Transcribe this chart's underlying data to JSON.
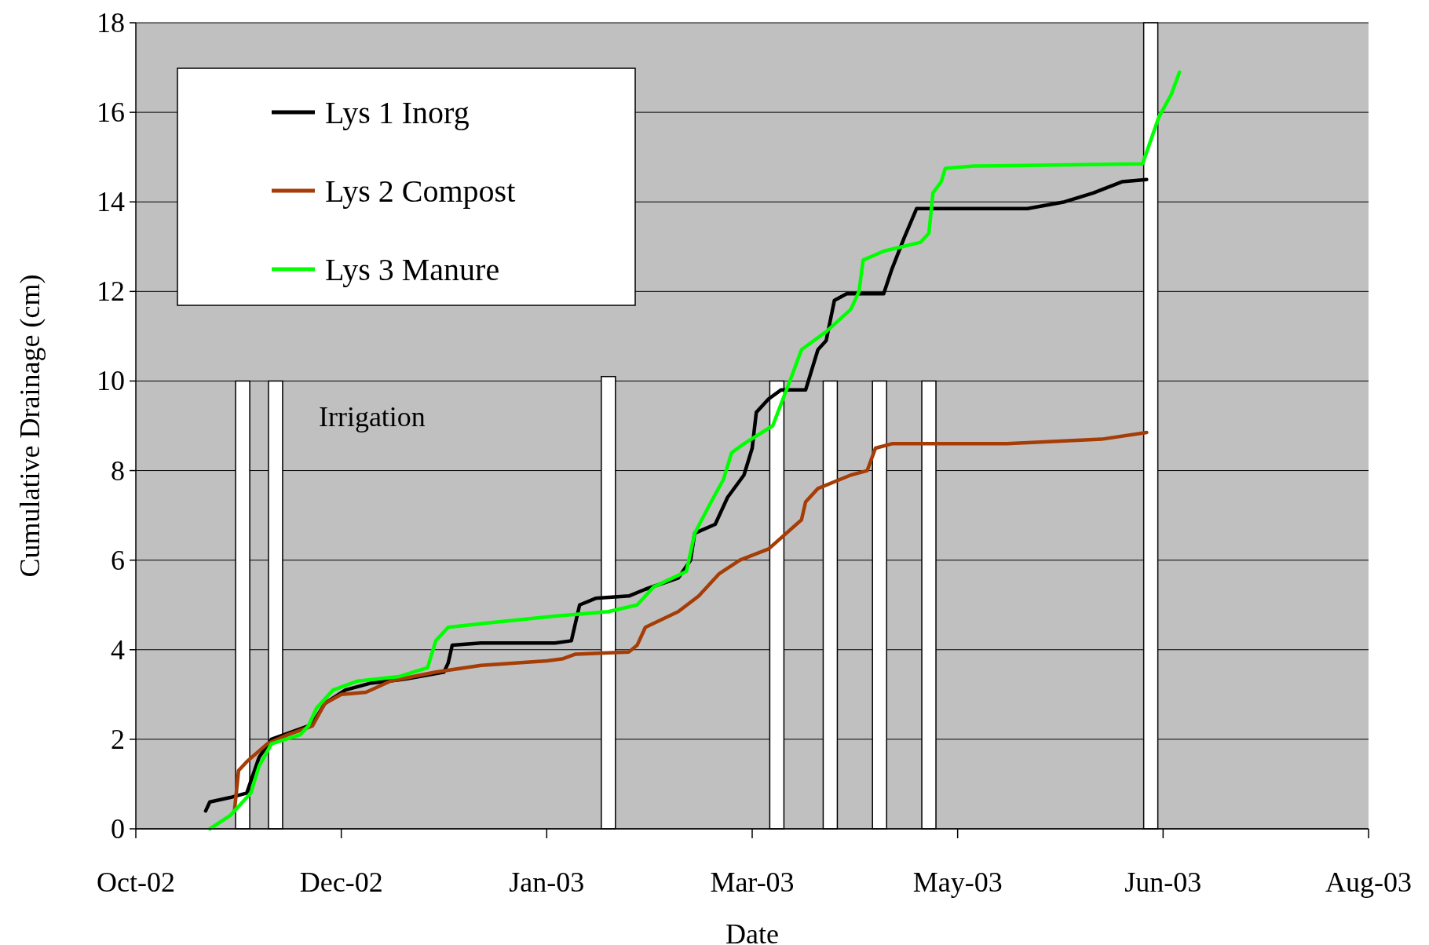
{
  "chart_data": {
    "type": "line",
    "xlabel": "Date",
    "ylabel": "Cumulative Drainage (cm)",
    "xlim": [
      "2002-10-15",
      "2003-08-11"
    ],
    "xticks": [
      {
        "value": "2002-10-15",
        "label": "Oct-02"
      },
      {
        "value": "2002-12-04",
        "label": "Dec-02"
      },
      {
        "value": "2003-01-23",
        "label": "Jan-03"
      },
      {
        "value": "2003-03-14",
        "label": "Mar-03"
      },
      {
        "value": "2003-05-03",
        "label": "May-03"
      },
      {
        "value": "2003-06-22",
        "label": "Jun-03"
      },
      {
        "value": "2003-08-11",
        "label": "Aug-03"
      }
    ],
    "ylim": [
      0,
      18
    ],
    "yticks": [
      0,
      2,
      4,
      6,
      8,
      10,
      12,
      14,
      16,
      18
    ],
    "grid": "y",
    "legend": "top left",
    "series": [
      {
        "type": "bar",
        "name": "Irrigation",
        "color": "#ffffff",
        "x": [
          "2002-11-10",
          "2002-11-18",
          "2003-02-07",
          "2003-03-20",
          "2003-04-02",
          "2003-04-14",
          "2003-04-26",
          "2003-06-19"
        ],
        "values": [
          10,
          10,
          10.1,
          10,
          10,
          10,
          10,
          18
        ]
      },
      {
        "name": "Lys 1 Inorg",
        "color": "#000000",
        "x": [
          "2002-11-01",
          "2002-11-02",
          "2002-11-07",
          "2002-11-11",
          "2002-11-14",
          "2002-11-17",
          "2002-11-26",
          "2002-11-28",
          "2002-11-30",
          "2002-12-05",
          "2002-12-11",
          "2002-12-20",
          "2002-12-29",
          "2002-12-30",
          "2002-12-31",
          "2003-01-07",
          "2003-01-25",
          "2003-01-29",
          "2003-01-30",
          "2003-01-31",
          "2003-02-04",
          "2003-02-12",
          "2003-02-16",
          "2003-02-24",
          "2003-02-27",
          "2003-02-28",
          "2003-03-05",
          "2003-03-08",
          "2003-03-12",
          "2003-03-14",
          "2003-03-15",
          "2003-03-18",
          "2003-03-21",
          "2003-03-27",
          "2003-03-30",
          "2003-04-01",
          "2003-04-03",
          "2003-04-06",
          "2003-04-15",
          "2003-04-17",
          "2003-04-20",
          "2003-04-23",
          "2003-04-26",
          "2003-05-20",
          "2003-05-29",
          "2003-06-05",
          "2003-06-12",
          "2003-06-18"
        ],
        "values": [
          0.4,
          0.6,
          0.7,
          0.8,
          1.6,
          2.0,
          2.3,
          2.5,
          2.8,
          3.1,
          3.25,
          3.35,
          3.5,
          3.7,
          4.1,
          4.15,
          4.15,
          4.2,
          4.6,
          5.0,
          5.15,
          5.2,
          5.35,
          5.6,
          6.0,
          6.6,
          6.8,
          7.4,
          7.9,
          8.5,
          9.3,
          9.6,
          9.8,
          9.8,
          10.7,
          10.9,
          11.8,
          11.95,
          11.95,
          12.5,
          13.2,
          13.85,
          13.85,
          13.85,
          14.0,
          14.2,
          14.45,
          14.5
        ]
      },
      {
        "name": "Lys 2 Compost",
        "color": "#a63c06",
        "x": [
          "2002-11-08",
          "2002-11-09",
          "2002-11-11",
          "2002-11-16",
          "2002-11-21",
          "2002-11-27",
          "2002-11-30",
          "2002-12-04",
          "2002-12-10",
          "2002-12-16",
          "2002-12-27",
          "2003-01-07",
          "2003-01-23",
          "2003-01-27",
          "2003-01-30",
          "2003-02-12",
          "2003-02-14",
          "2003-02-16",
          "2003-02-24",
          "2003-03-01",
          "2003-03-06",
          "2003-03-11",
          "2003-03-18",
          "2003-03-26",
          "2003-03-27",
          "2003-03-30",
          "2003-04-07",
          "2003-04-11",
          "2003-04-13",
          "2003-04-17",
          "2003-05-15",
          "2003-06-07",
          "2003-06-18"
        ],
        "values": [
          0.4,
          1.3,
          1.5,
          1.9,
          2.1,
          2.3,
          2.8,
          3.0,
          3.05,
          3.3,
          3.5,
          3.65,
          3.75,
          3.8,
          3.9,
          3.95,
          4.1,
          4.5,
          4.85,
          5.2,
          5.7,
          6.0,
          6.25,
          6.9,
          7.3,
          7.6,
          7.9,
          8.0,
          8.5,
          8.6,
          8.6,
          8.7,
          8.85
        ]
      },
      {
        "name": "Lys 3 Manure",
        "color": "#00ff00",
        "x": [
          "2002-11-02",
          "2002-11-07",
          "2002-11-10",
          "2002-11-12",
          "2002-11-14",
          "2002-11-17",
          "2002-11-24",
          "2002-11-26",
          "2002-11-28",
          "2002-12-02",
          "2002-12-08",
          "2002-12-18",
          "2002-12-25",
          "2002-12-27",
          "2002-12-30",
          "2003-01-09",
          "2003-01-25",
          "2003-02-07",
          "2003-02-14",
          "2003-02-18",
          "2003-02-26",
          "2003-02-28",
          "2003-03-04",
          "2003-03-07",
          "2003-03-09",
          "2003-03-12",
          "2003-03-19",
          "2003-03-24",
          "2003-03-26",
          "2003-04-01",
          "2003-04-07",
          "2003-04-09",
          "2003-04-10",
          "2003-04-15",
          "2003-04-24",
          "2003-04-26",
          "2003-04-27",
          "2003-04-29",
          "2003-04-30",
          "2003-05-07",
          "2003-06-17",
          "2003-06-21",
          "2003-06-24",
          "2003-06-26"
        ],
        "values": [
          0.0,
          0.3,
          0.6,
          0.8,
          1.4,
          1.9,
          2.1,
          2.3,
          2.7,
          3.1,
          3.3,
          3.4,
          3.6,
          4.2,
          4.5,
          4.6,
          4.75,
          4.85,
          5.0,
          5.4,
          5.75,
          6.6,
          7.3,
          7.8,
          8.4,
          8.6,
          9.0,
          10.2,
          10.7,
          11.1,
          11.6,
          12.0,
          12.7,
          12.9,
          13.1,
          13.3,
          14.2,
          14.45,
          14.75,
          14.8,
          14.85,
          15.9,
          16.4,
          16.9
        ]
      }
    ]
  }
}
